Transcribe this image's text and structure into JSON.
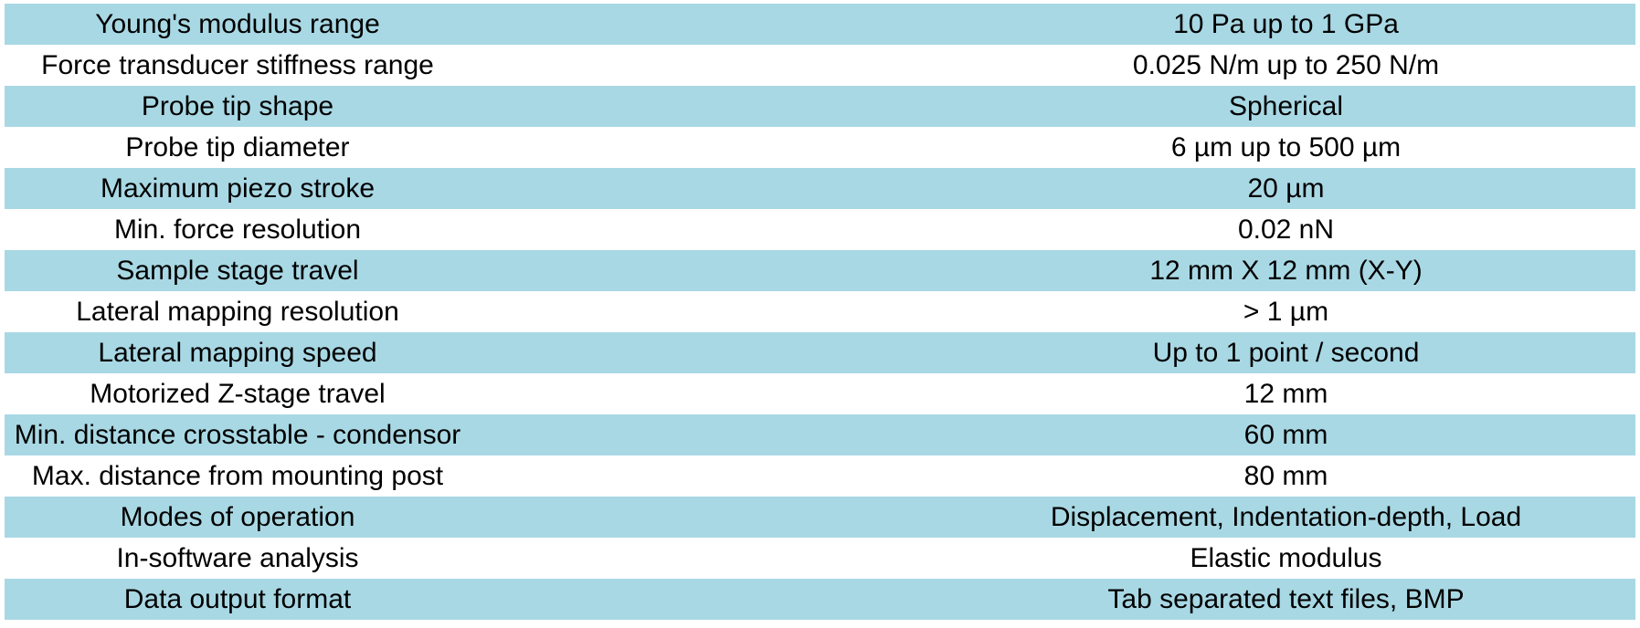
{
  "table": {
    "rows": [
      {
        "label": "Young's modulus range",
        "value": "10 Pa up to 1 GPa"
      },
      {
        "label": "Force transducer stiffness range",
        "value": "0.025 N/m up to 250 N/m"
      },
      {
        "label": "Probe tip shape",
        "value": "Spherical"
      },
      {
        "label": "Probe tip diameter",
        "value": "6 µm up to 500 µm"
      },
      {
        "label": "Maximum piezo stroke",
        "value": "20 µm"
      },
      {
        "label": "Min. force resolution",
        "value": "0.02 nN"
      },
      {
        "label": "Sample stage travel",
        "value": "12 mm X 12 mm (X-Y)"
      },
      {
        "label": "Lateral mapping resolution",
        "value": "> 1 µm"
      },
      {
        "label": "Lateral mapping speed",
        "value": "Up to 1 point / second"
      },
      {
        "label": "Motorized Z-stage travel",
        "value": "12 mm"
      },
      {
        "label": "Min. distance crosstable - condensor",
        "value": "60 mm"
      },
      {
        "label": "Max. distance from mounting post",
        "value": "80 mm"
      },
      {
        "label": "Modes of operation",
        "value": "Displacement, Indentation-depth, Load"
      },
      {
        "label": "In-software analysis",
        "value": "Elastic modulus"
      },
      {
        "label": "Data output format",
        "value": "Tab separated text files, BMP"
      }
    ]
  },
  "colors": {
    "row_shade": "#a8d8e4",
    "row_plain": "#ffffff"
  }
}
